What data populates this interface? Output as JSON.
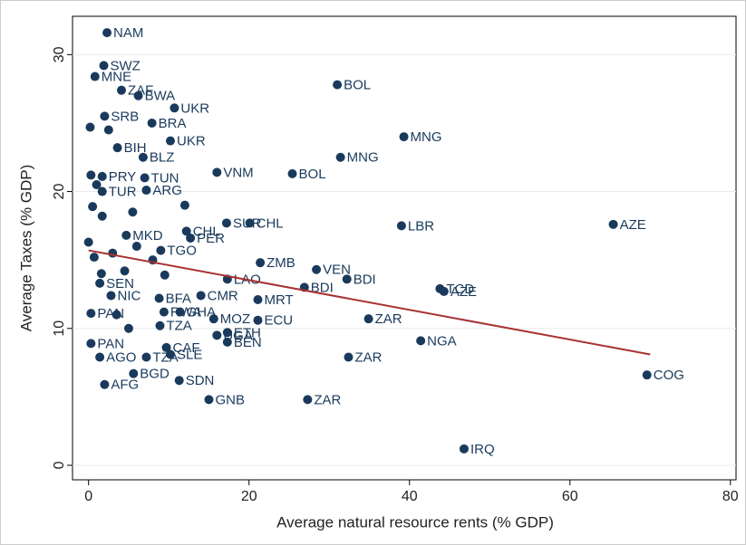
{
  "chart_data": {
    "type": "scatter",
    "xlabel": "Average natural resource rents (% GDP)",
    "ylabel": "Average Taxes (% GDP)",
    "xlim": [
      -2,
      80.7
    ],
    "ylim": [
      -1.06,
      32.8
    ],
    "xticks": [
      0,
      20,
      40,
      60,
      80
    ],
    "yticks": [
      0,
      10,
      20,
      30
    ],
    "grid": true,
    "series": [
      {
        "type": "scatter",
        "color": "#1a3a5c",
        "x": [
          2.3,
          1.9,
          0.8,
          4.1,
          6.2,
          31.0,
          10.7,
          2.0,
          7.9,
          39.3,
          10.2,
          3.6,
          31.4,
          6.8,
          16.0,
          25.4,
          7.0,
          7.2,
          1.7,
          39.0,
          65.4,
          17.2,
          20.1,
          12.2,
          12.7,
          4.7,
          9.0,
          28.4,
          21.4,
          32.2,
          26.9,
          17.3,
          43.8,
          44.3,
          21.1,
          14.0,
          11.4,
          2.8,
          8.8,
          34.9,
          0.3,
          9.4,
          15.6,
          21.1,
          8.9,
          41.4,
          16.0,
          17.3,
          17.3,
          0.3,
          9.7,
          32.4,
          10.2,
          1.4,
          7.2,
          5.6,
          11.3,
          69.6,
          2.0,
          15.0,
          27.3,
          46.8,
          1.4,
          1.7,
          0,
          0.7,
          1.6,
          0.2,
          0.3,
          0.5,
          1.7,
          3.0,
          4.5,
          5.5,
          2.5,
          6.0,
          9.5,
          12.0,
          3.5,
          5.0,
          1.0,
          8.0
        ],
        "values": [
          31.6,
          29.2,
          28.4,
          27.4,
          27.0,
          27.8,
          26.1,
          25.5,
          25.0,
          24.0,
          23.7,
          23.2,
          22.5,
          22.5,
          21.4,
          21.3,
          21.0,
          20.1,
          21.1,
          17.5,
          17.6,
          17.7,
          17.7,
          17.1,
          16.6,
          16.8,
          15.7,
          14.3,
          14.8,
          13.6,
          13.0,
          13.6,
          12.9,
          12.7,
          12.1,
          12.4,
          11.2,
          12.4,
          12.2,
          10.7,
          11.1,
          11.2,
          10.7,
          10.6,
          10.2,
          9.1,
          9.5,
          9.7,
          9.0,
          8.9,
          8.6,
          7.9,
          8.1,
          7.9,
          7.9,
          6.7,
          6.2,
          6.6,
          5.9,
          4.8,
          4.8,
          1.2,
          13.3,
          20.0,
          16.3,
          15.2,
          14.0,
          24.7,
          21.2,
          18.9,
          18.2,
          15.5,
          14.2,
          18.5,
          24.5,
          16.0,
          13.9,
          19.0,
          11.0,
          10.0,
          20.5,
          15.0
        ],
        "labels": [
          "NAM",
          "SWZ",
          "MNE",
          "ZAF",
          "BWA",
          "BOL",
          "UKR",
          "SRB",
          "BRA",
          "MNG",
          "UKR",
          "BIH",
          "MNG",
          "BLZ",
          "VNM",
          "BOL",
          "TUN",
          "ARG",
          "PRY",
          "LBR",
          "AZE",
          "SUR",
          "CHL",
          "CHL",
          "PER",
          "MKD",
          "TGO",
          "VEN",
          "ZMB",
          "BDI",
          "BDI",
          "LAO",
          "TCD",
          "AZE",
          "MRT",
          "CMR",
          "GHA",
          "NIC",
          "BFA",
          "ZAR",
          "PAN",
          "RWA",
          "MOZ",
          "ECU",
          "TZA",
          "NGA",
          "UGA",
          "ETH",
          "BEN",
          "PAN",
          "CAF",
          "ZAR",
          "SLE",
          "AGO",
          "TZA",
          "BGD",
          "SDN",
          "COG",
          "AFG",
          "GNB",
          "ZAR",
          "IRQ",
          "SEN",
          "TUR",
          null,
          null,
          null,
          null,
          null,
          null,
          null,
          null,
          null,
          null,
          null,
          null,
          null,
          null,
          null,
          null,
          null,
          null
        ]
      },
      {
        "type": "line",
        "color": "#a83232",
        "x": [
          0,
          70
        ],
        "values": [
          15.7,
          8.1
        ]
      }
    ]
  }
}
